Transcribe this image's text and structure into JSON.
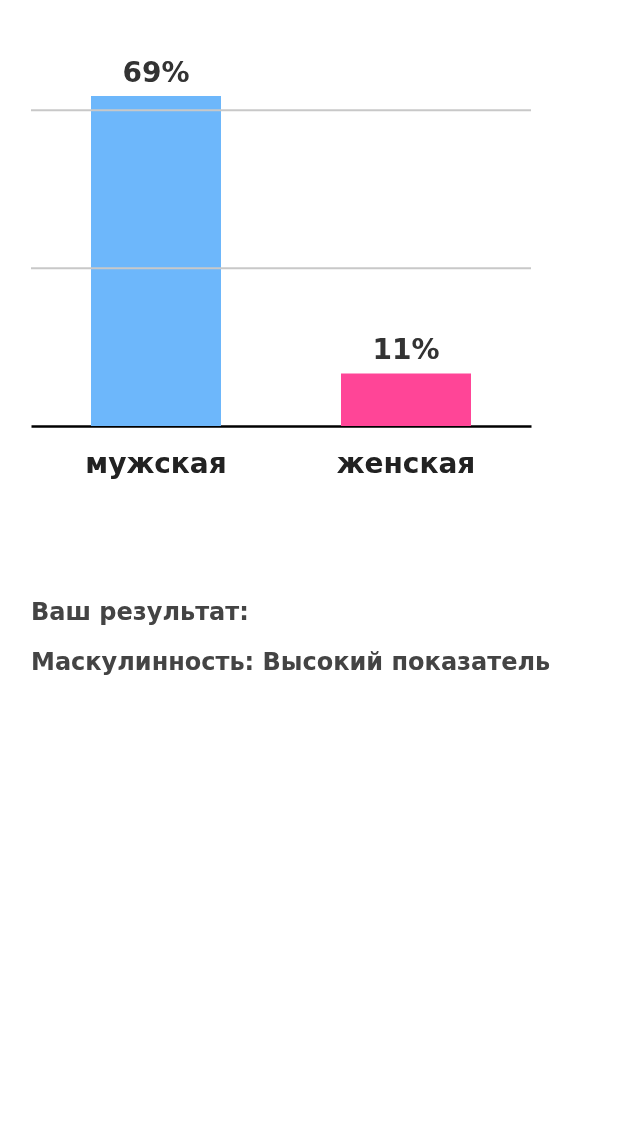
{
  "chart_data": {
    "type": "bar",
    "categories": [
      "мужская",
      "женская"
    ],
    "values": [
      69,
      11
    ],
    "value_labels": [
      "69%",
      "11%"
    ],
    "colors": [
      "#6db7fb",
      "#ff4597"
    ],
    "ylim": [
      0,
      69
    ],
    "ref_lines": [
      {
        "axis": "y",
        "value": 33,
        "color": "#c8c8c8"
      },
      {
        "axis": "y",
        "value": 66,
        "color": "#c8c8c8"
      }
    ],
    "tick_labels": "x",
    "annotations": [
      "Ваш результат:",
      "Маскулинность: Высокий показатель"
    ]
  }
}
